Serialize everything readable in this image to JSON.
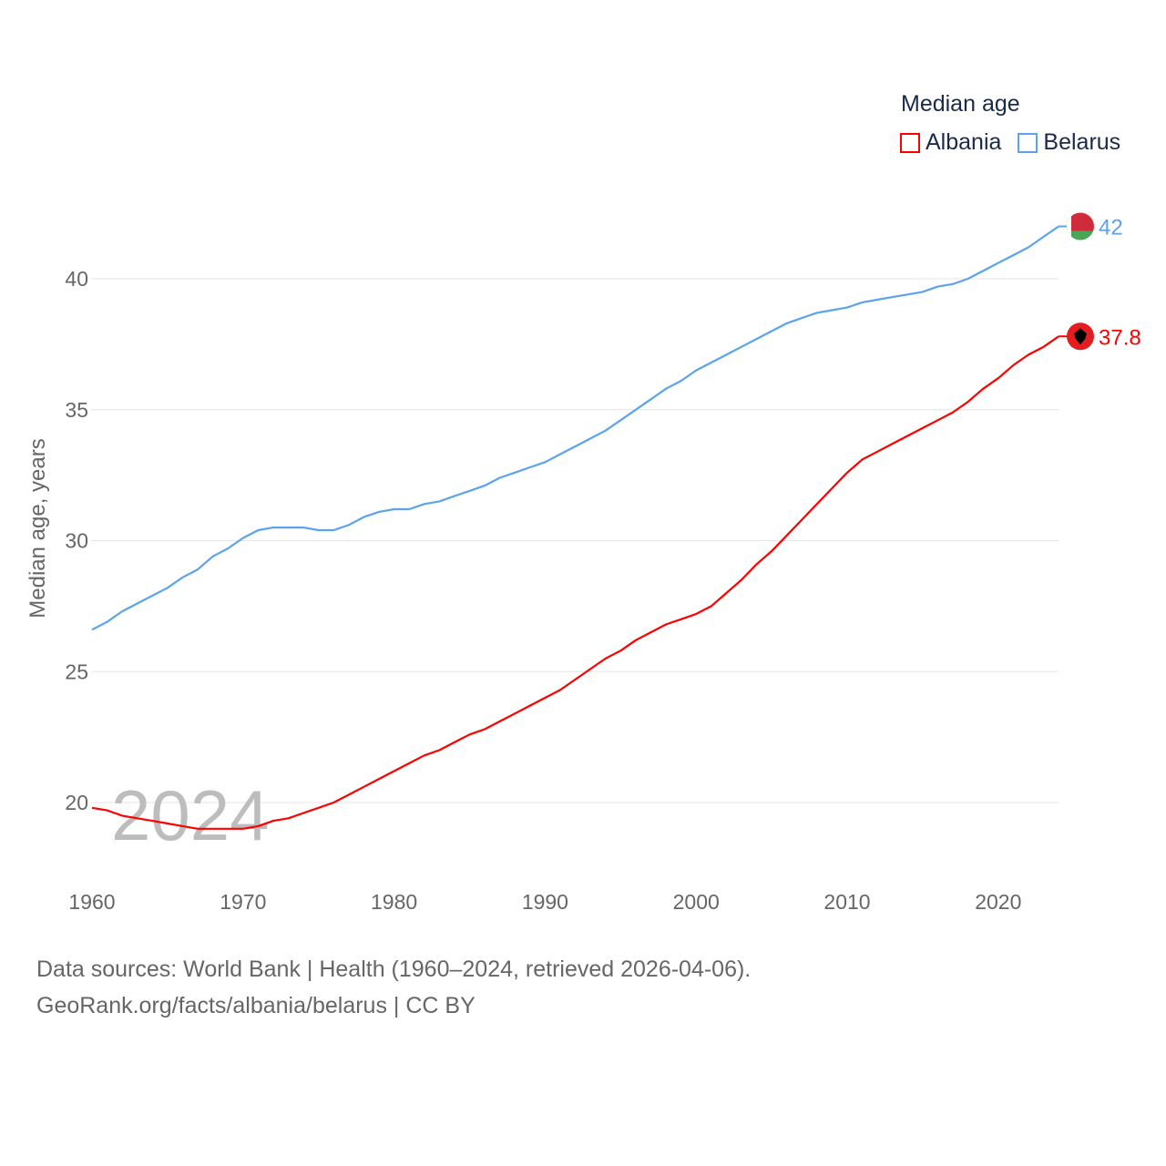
{
  "chart_data": {
    "type": "line",
    "title": "Median age",
    "xlabel": "",
    "ylabel": "Median age, years",
    "xlim": [
      1960,
      2024
    ],
    "ylim": [
      18,
      42
    ],
    "yticks": [
      20,
      25,
      30,
      35,
      40
    ],
    "xticks": [
      1960,
      1970,
      1980,
      1990,
      2000,
      2010,
      2020
    ],
    "grid": true,
    "legend_placement": "top-right",
    "watermark_year": "2024",
    "x": [
      1960,
      1961,
      1962,
      1963,
      1964,
      1965,
      1966,
      1967,
      1968,
      1969,
      1970,
      1971,
      1972,
      1973,
      1974,
      1975,
      1976,
      1977,
      1978,
      1979,
      1980,
      1981,
      1982,
      1983,
      1984,
      1985,
      1986,
      1987,
      1988,
      1989,
      1990,
      1991,
      1992,
      1993,
      1994,
      1995,
      1996,
      1997,
      1998,
      1999,
      2000,
      2001,
      2002,
      2003,
      2004,
      2005,
      2006,
      2007,
      2008,
      2009,
      2010,
      2011,
      2012,
      2013,
      2014,
      2015,
      2016,
      2017,
      2018,
      2019,
      2020,
      2021,
      2022,
      2023,
      2024
    ],
    "series": [
      {
        "name": "Albania",
        "color": "#ff0000",
        "end_label": "37.8",
        "values": [
          19.8,
          19.7,
          19.5,
          19.4,
          19.3,
          19.2,
          19.1,
          19.0,
          19.0,
          19.0,
          19.0,
          19.1,
          19.3,
          19.4,
          19.6,
          19.8,
          20.0,
          20.3,
          20.6,
          20.9,
          21.2,
          21.5,
          21.8,
          22.0,
          22.3,
          22.6,
          22.8,
          23.1,
          23.4,
          23.7,
          24.0,
          24.3,
          24.7,
          25.1,
          25.5,
          25.8,
          26.2,
          26.5,
          26.8,
          27.0,
          27.2,
          27.5,
          28.0,
          28.5,
          29.1,
          29.6,
          30.2,
          30.8,
          31.4,
          32.0,
          32.6,
          33.1,
          33.4,
          33.7,
          34.0,
          34.3,
          34.6,
          34.9,
          35.3,
          35.8,
          36.2,
          36.7,
          37.1,
          37.4,
          37.8
        ]
      },
      {
        "name": "Belarus",
        "color": "#5ba4ec",
        "end_label": "42",
        "values": [
          26.6,
          26.9,
          27.3,
          27.6,
          27.9,
          28.2,
          28.6,
          28.9,
          29.4,
          29.7,
          30.1,
          30.4,
          30.5,
          30.5,
          30.5,
          30.4,
          30.4,
          30.6,
          30.9,
          31.1,
          31.2,
          31.2,
          31.4,
          31.5,
          31.7,
          31.9,
          32.1,
          32.4,
          32.6,
          32.8,
          33.0,
          33.3,
          33.6,
          33.9,
          34.2,
          34.6,
          35.0,
          35.4,
          35.8,
          36.1,
          36.5,
          36.8,
          37.1,
          37.4,
          37.7,
          38.0,
          38.3,
          38.5,
          38.7,
          38.8,
          38.9,
          39.1,
          39.2,
          39.3,
          39.4,
          39.5,
          39.7,
          39.8,
          40.0,
          40.3,
          40.6,
          40.9,
          41.2,
          41.6,
          42.0
        ]
      }
    ]
  },
  "legend": {
    "title": "Median age",
    "items": [
      "Albania",
      "Belarus"
    ]
  },
  "footer": {
    "line1": "Data sources: World Bank | Health (1960–2024, retrieved 2026-04-06).",
    "line2": "GeoRank.org/facts/albania/belarus | CC BY"
  }
}
